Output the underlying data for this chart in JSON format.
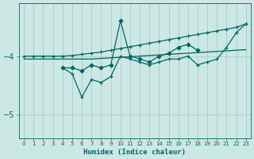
{
  "xlabel": "Humidex (Indice chaleur)",
  "bg_color": "#cce8e4",
  "line_color": "#006666",
  "grid_color": "#aaccc8",
  "ylim": [
    -5.4,
    -3.1
  ],
  "xlim": [
    -0.5,
    23.5
  ],
  "yticks": [
    -5.0,
    -4.0
  ],
  "xticks": [
    0,
    1,
    2,
    3,
    4,
    5,
    6,
    7,
    8,
    9,
    10,
    11,
    12,
    13,
    14,
    15,
    16,
    17,
    18,
    19,
    20,
    21,
    22,
    23
  ],
  "x_all": [
    0,
    1,
    2,
    3,
    4,
    5,
    6,
    7,
    8,
    9,
    10,
    11,
    12,
    13,
    14,
    15,
    16,
    17,
    18,
    19,
    20,
    21,
    22,
    23
  ],
  "trend_low_y": [
    -4.05,
    -4.05,
    -4.05,
    -4.05,
    -4.05,
    -4.05,
    -4.05,
    -4.05,
    -4.04,
    -4.03,
    -4.02,
    -4.01,
    -4.0,
    -3.99,
    -3.98,
    -3.97,
    -3.96,
    -3.95,
    -3.94,
    -3.93,
    -3.92,
    -3.91,
    -3.9,
    -3.89
  ],
  "trend_high_y": [
    -4.0,
    -4.0,
    -4.0,
    -4.0,
    -4.0,
    -3.99,
    -3.97,
    -3.95,
    -3.93,
    -3.9,
    -3.87,
    -3.84,
    -3.81,
    -3.78,
    -3.75,
    -3.72,
    -3.69,
    -3.66,
    -3.63,
    -3.6,
    -3.57,
    -3.54,
    -3.51,
    -3.45
  ],
  "zigzag_up_x": [
    4,
    5,
    6,
    7,
    8,
    9,
    10,
    11,
    12,
    13,
    14,
    15,
    16,
    17,
    18
  ],
  "zigzag_up_y": [
    -4.2,
    -4.2,
    -4.25,
    -4.15,
    -4.2,
    -4.15,
    -3.4,
    -4.0,
    -4.05,
    -4.1,
    -4.0,
    -3.95,
    -3.85,
    -3.8,
    -3.9
  ],
  "zigzag_down_x": [
    4,
    5,
    6,
    7,
    8,
    9,
    10,
    11,
    12,
    13,
    14,
    15,
    16,
    17,
    18,
    19,
    20,
    21,
    22,
    23
  ],
  "zigzag_down_y": [
    -4.2,
    -4.3,
    -4.7,
    -4.4,
    -4.45,
    -4.35,
    -4.0,
    -4.05,
    -4.1,
    -4.15,
    -4.1,
    -4.05,
    -4.05,
    -4.0,
    -4.15,
    -4.1,
    -4.05,
    -3.85,
    -3.6,
    -3.45
  ]
}
